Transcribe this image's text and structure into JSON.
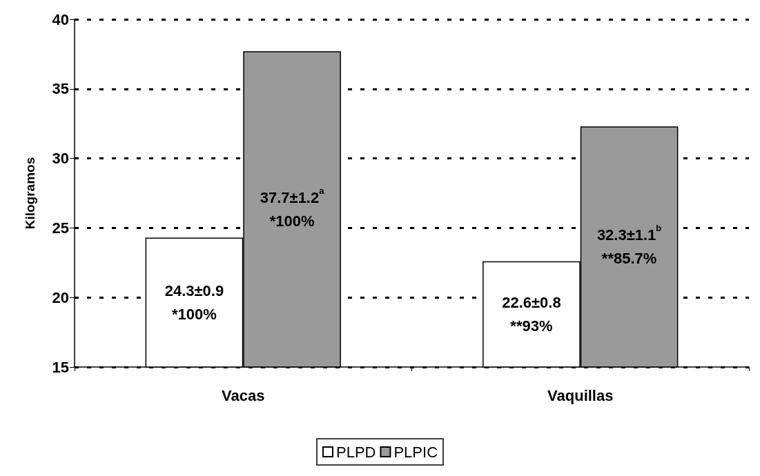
{
  "chart_data": {
    "type": "bar",
    "ylabel": "Kilogramos",
    "categories": [
      "Vacas",
      "Vaquillas"
    ],
    "series": [
      {
        "name": "PLPD",
        "color": "#ffffff",
        "values": [
          24.3,
          22.6
        ],
        "value_labels": [
          "24.3±0.9\n*100%",
          "22.6±0.8\n**93%"
        ]
      },
      {
        "name": "PLPIC",
        "color": "#9a9a9a",
        "values": [
          37.7,
          32.3
        ],
        "value_labels": [
          "37.7±1.2$^{a}$\n*100%",
          "32.3±1.1$^{b}$\n**85.7%"
        ]
      }
    ],
    "ylim": [
      15,
      40
    ],
    "yticks": [
      15,
      20,
      25,
      30,
      35,
      40
    ],
    "grid": "y",
    "line_style": "dashed",
    "legend": "bottom"
  }
}
